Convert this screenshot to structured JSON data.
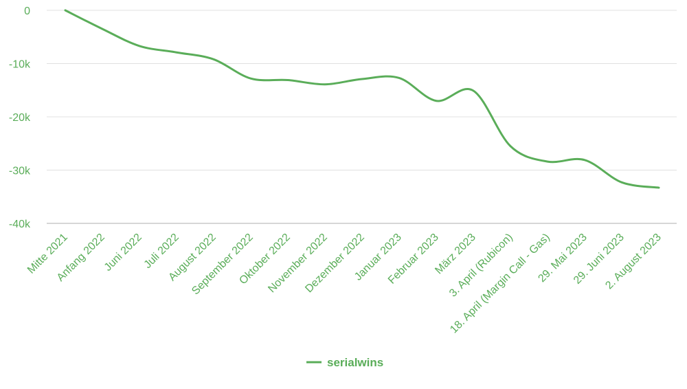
{
  "colors": {
    "series": "#5aad59",
    "axis_text": "#5aad59",
    "grid": "#e0e0e0",
    "baseline": "#bdbdbd"
  },
  "chart_data": {
    "type": "line",
    "title": "",
    "xlabel": "",
    "ylabel": "",
    "categories": [
      "Mitte 2021",
      "Anfang 2022",
      "Juni 2022",
      "Juli 2022",
      "August 2022",
      "September 2022",
      "Oktober 2022",
      "November 2022",
      "Dezember 2022",
      "Januar 2023",
      "Februar 2023",
      "März 2023",
      "3. April (Rubicon)",
      "18. April (Margin Call - Gas)",
      "29. Mai 2023",
      "29. Juni 2023",
      "2. August 2023"
    ],
    "series": [
      {
        "name": "serialwins",
        "values": [
          0,
          -3500,
          -6700,
          -7900,
          -9200,
          -12800,
          -13100,
          -13900,
          -12900,
          -12700,
          -17000,
          -15100,
          -25500,
          -28400,
          -28100,
          -32300,
          -33300
        ]
      }
    ],
    "ylim": [
      -40000,
      0
    ],
    "yticks": [
      0,
      -10000,
      -20000,
      -30000,
      -40000
    ],
    "ytick_labels": [
      "0",
      "-10k",
      "-20k",
      "-30k",
      "-40k"
    ],
    "grid": true,
    "legend": "bottom-center"
  }
}
